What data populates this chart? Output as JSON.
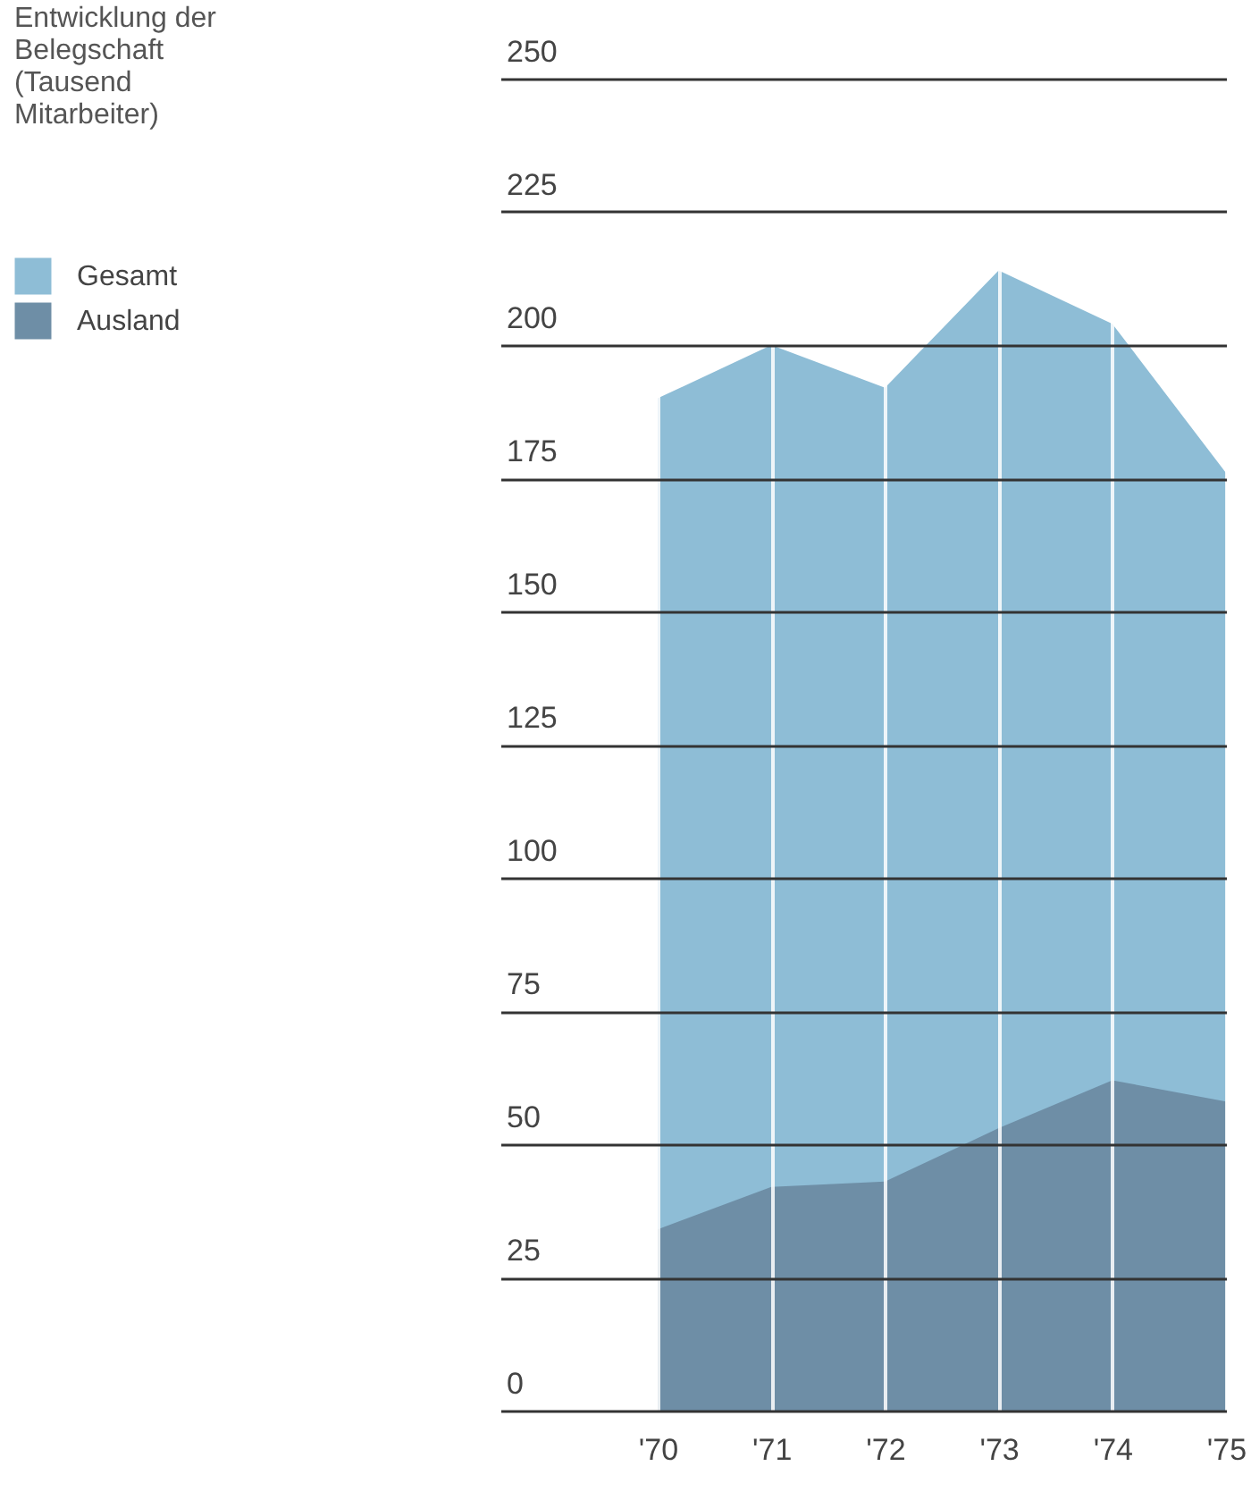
{
  "chart_data": {
    "type": "area",
    "title": "Entwicklung der Belegschaft (Tausend Mitarbeiter)",
    "categories": [
      "'70",
      "'71",
      "'72",
      "'73",
      "'74",
      "'75"
    ],
    "series": [
      {
        "name": "Gesamt",
        "color": "#8ebdd6",
        "values": [
          190,
          200,
          192,
          214,
          204,
          176
        ]
      },
      {
        "name": "Ausland",
        "color": "#6e8ea6",
        "values": [
          34,
          42,
          43,
          53,
          62,
          58
        ]
      }
    ],
    "ylim": [
      0,
      250
    ],
    "yticks": [
      0,
      25,
      50,
      75,
      100,
      125,
      150,
      175,
      200,
      225,
      250
    ],
    "grid": true,
    "legend": "top left"
  }
}
